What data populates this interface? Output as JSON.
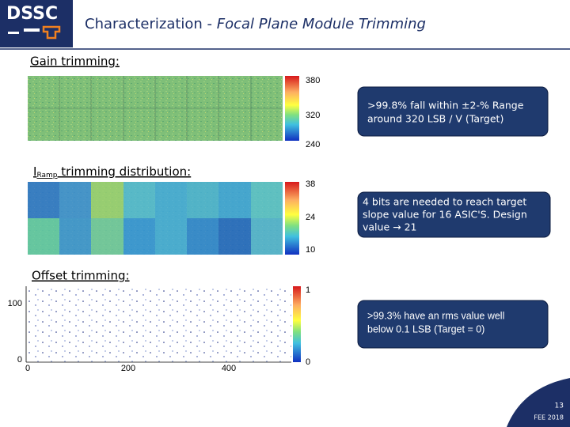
{
  "header": {
    "logo": "DSSC",
    "title": "Characterization - ",
    "title_italic": "Focal Plane Module Trimming"
  },
  "gain": {
    "label": "Gain trimming:",
    "scale": [
      "380",
      "320",
      "240"
    ],
    "note": [
      ">99.8% fall within ±2-% Range",
      "around 320 LSB / V (Target)"
    ]
  },
  "iramp": {
    "label_main": "I",
    "label_sub": "Ramp",
    "label_rest": " trimming distribution:",
    "scale": [
      "38",
      "24",
      "10"
    ],
    "note": [
      "4 bits are needed to reach target",
      "slope value for  16 ASIC'S. Design",
      "value → 21"
    ]
  },
  "offset": {
    "label": "Offset trimming:",
    "scale": [
      "1",
      "0"
    ],
    "y_labels": [
      "100",
      "0"
    ],
    "x_labels": [
      "0",
      "200",
      "400"
    ],
    "note": [
      ">99.3% have an rms value well",
      "below 0.1 LSB (Target = 0)"
    ]
  },
  "footer": {
    "page": "13",
    "event": "FEE 2018"
  }
}
